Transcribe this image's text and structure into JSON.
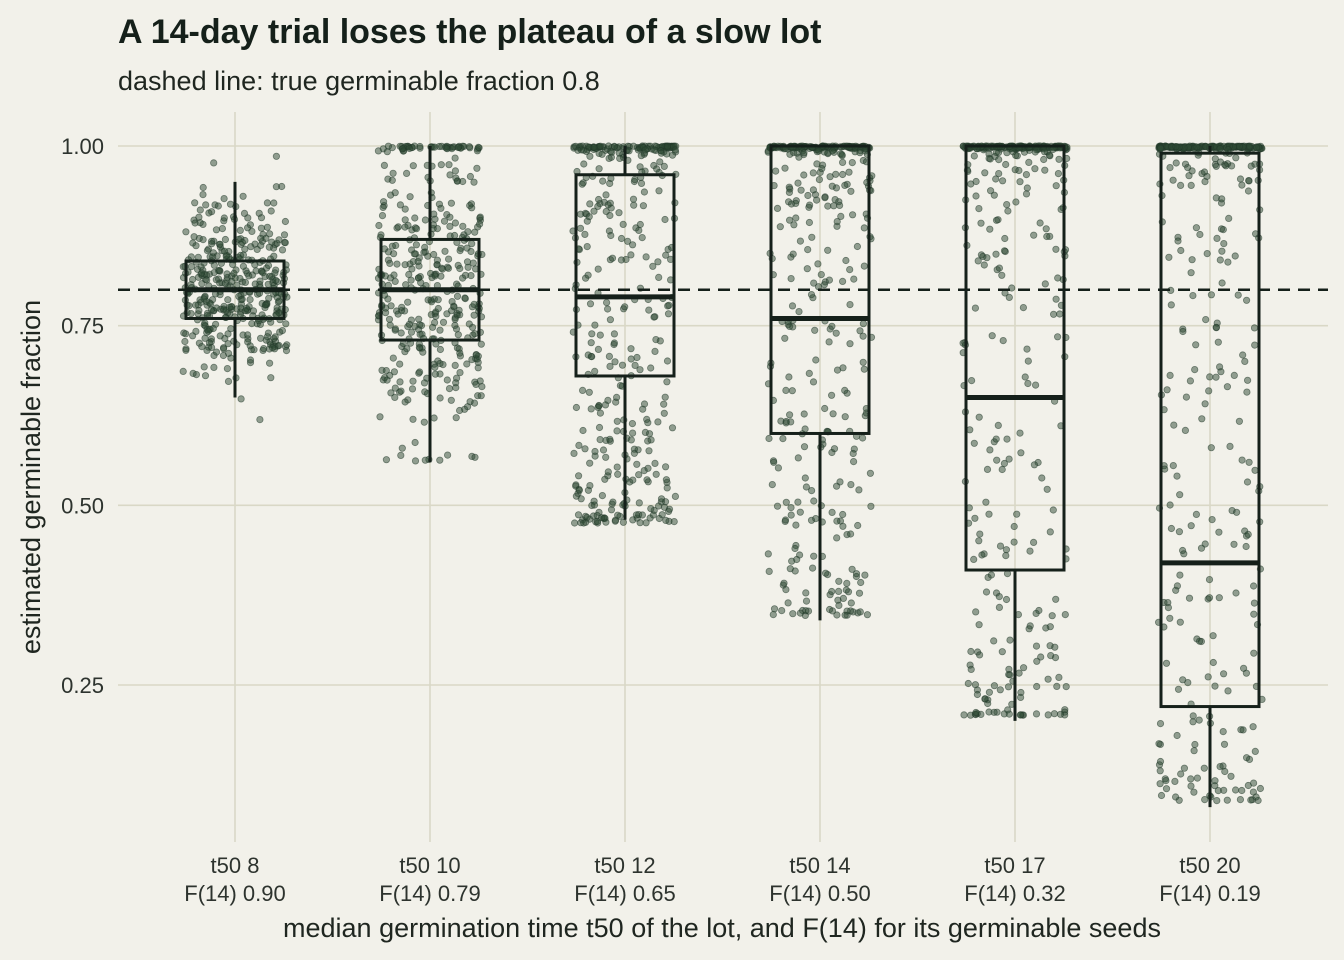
{
  "chart_data": {
    "type": "box",
    "title": "A 14-day trial loses the plateau of a slow lot",
    "subtitle": "dashed line: true germinable fraction 0.8",
    "xlabel": "median germination time t50 of the lot, and F(14) for its germinable seeds",
    "ylabel": "estimated germinable fraction",
    "ylim": [
      0.05,
      1.03
    ],
    "yticks": [
      0.25,
      0.5,
      0.75,
      1.0
    ],
    "ytick_labels": [
      "0.25",
      "0.50",
      "0.75",
      "1.00"
    ],
    "reference_line": {
      "y": 0.8,
      "style": "dashed"
    },
    "grid": true,
    "categories": [
      {
        "line1": "t50 8",
        "line2": "F(14) 0.90",
        "stats": {
          "whisker_low": 0.65,
          "q1": 0.76,
          "median": 0.8,
          "q3": 0.84,
          "whisker_high": 0.95
        },
        "points_range": [
          0.61,
          1.0
        ],
        "cap_fraction": 0.0
      },
      {
        "line1": "t50 10",
        "line2": "F(14) 0.79",
        "stats": {
          "whisker_low": 0.56,
          "q1": 0.73,
          "median": 0.8,
          "q3": 0.87,
          "whisker_high": 1.0
        },
        "points_range": [
          0.56,
          1.0
        ],
        "cap_fraction": 0.08
      },
      {
        "line1": "t50 12",
        "line2": "F(14) 0.65",
        "stats": {
          "whisker_low": 0.48,
          "q1": 0.68,
          "median": 0.79,
          "q3": 0.96,
          "whisker_high": 1.0
        },
        "points_range": [
          0.47,
          1.0
        ],
        "cap_fraction": 0.2
      },
      {
        "line1": "t50 14",
        "line2": "F(14) 0.50",
        "stats": {
          "whisker_low": 0.34,
          "q1": 0.6,
          "median": 0.76,
          "q3": 1.0,
          "whisker_high": 1.0
        },
        "points_range": [
          0.34,
          1.0
        ],
        "cap_fraction": 0.3
      },
      {
        "line1": "t50 17",
        "line2": "F(14) 0.32",
        "stats": {
          "whisker_low": 0.2,
          "q1": 0.41,
          "median": 0.65,
          "q3": 1.0,
          "whisker_high": 1.0
        },
        "points_range": [
          0.2,
          1.0
        ],
        "cap_fraction": 0.4
      },
      {
        "line1": "t50 20",
        "line2": "F(14) 0.19",
        "stats": {
          "whisker_low": 0.08,
          "q1": 0.22,
          "median": 0.42,
          "q3": 0.99,
          "whisker_high": 1.0
        },
        "points_range": [
          0.08,
          1.0
        ],
        "cap_fraction": 0.4
      }
    ],
    "colors": {
      "background": "#f2f1ea",
      "grid": "#d9d8c6",
      "ink": "#15201a",
      "points": "#2d4a34"
    }
  }
}
